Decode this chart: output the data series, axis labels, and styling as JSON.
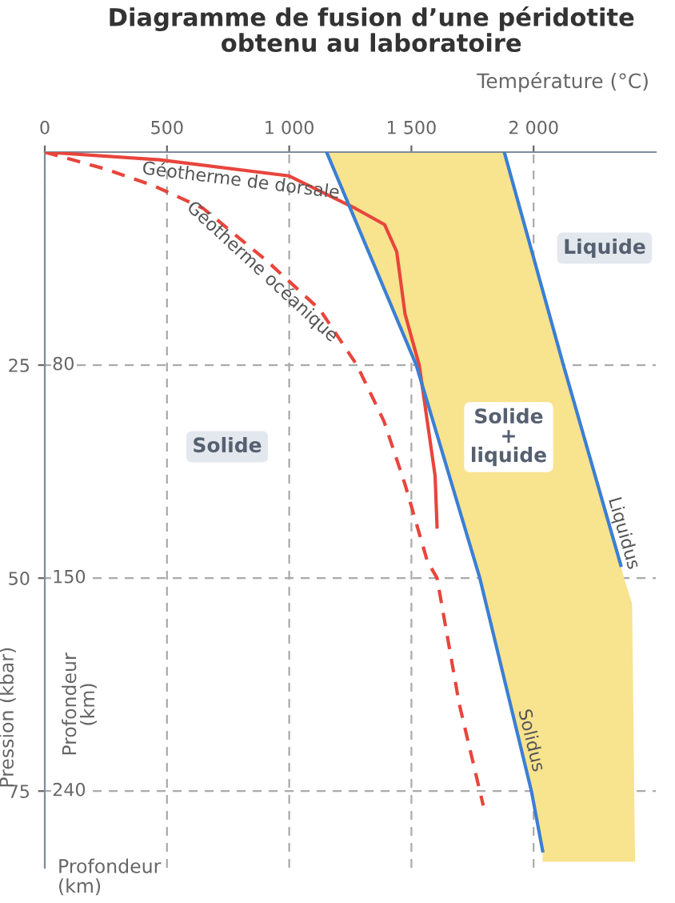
{
  "chart_data": {
    "type": "line",
    "title": "Diagramme de fusion d’une péridotite\nobtenu au laboratoire",
    "xlabel": "Température (°C)",
    "ylabel": "Pression (kbar)",
    "xlim": [
      0,
      2500
    ],
    "xticks": [
      0,
      500,
      {
        "value": 1000,
        "label": "1 000"
      },
      {
        "value": 1500,
        "label": "1 500"
      },
      {
        "value": 2000,
        "label": "2 000"
      }
    ],
    "ylim": [
      84,
      0
    ],
    "yticks": [
      25,
      50,
      75
    ],
    "grid": true,
    "series": [
      {
        "type": "area",
        "color": "#f8e38e",
        "x": [
          1153,
          1880,
          2122,
          2357,
          2370,
          2403,
          2415,
          2037,
          2037,
          1991,
          1780,
          1520,
          1153
        ],
        "values": [
          0,
          0,
          25,
          48.5,
          50,
          53,
          83.3,
          83.3,
          82,
          75,
          50,
          25,
          0
        ]
      },
      {
        "name": "Géotherme de dorsale",
        "color": "#e8453c",
        "line_style": "solid",
        "x": [
          0,
          470,
          1000,
          1270,
          1390,
          1440,
          1474,
          1532,
          1565,
          1597,
          1605
        ],
        "values": [
          0,
          0.9,
          2.8,
          6.6,
          8.5,
          11.7,
          19,
          25,
          31.6,
          38,
          44
        ]
      },
      {
        "name": "Géotherme océanique",
        "color": "#e8453c",
        "line_style": "dashed",
        "x": [
          0,
          250,
          450,
          648,
          910,
          1126,
          1277,
          1388,
          1474,
          1565,
          1605,
          1696,
          1794
        ],
        "values": [
          0,
          2,
          4,
          6.6,
          12.8,
          18.5,
          25,
          31.6,
          39,
          48,
          50,
          64.8,
          76.7
        ]
      },
      {
        "name": "Solidus",
        "color": "#3b7fd4",
        "line_style": "solid",
        "x": [
          1153,
          1520,
          1780,
          1991,
          2037
        ],
        "values": [
          0,
          25,
          50,
          75,
          82
        ]
      },
      {
        "name": "Liquidus",
        "color": "#3b7fd4",
        "line_style": "solid",
        "x": [
          1880,
          2122,
          2357
        ],
        "values": [
          0,
          25,
          48.5
        ]
      }
    ],
    "annotations": [
      "Solide",
      "Liquide",
      "Solide\n+\nliquide",
      "80",
      "150",
      "240",
      "Profondeur\n(km)",
      "Profondeur\n(km)"
    ]
  }
}
